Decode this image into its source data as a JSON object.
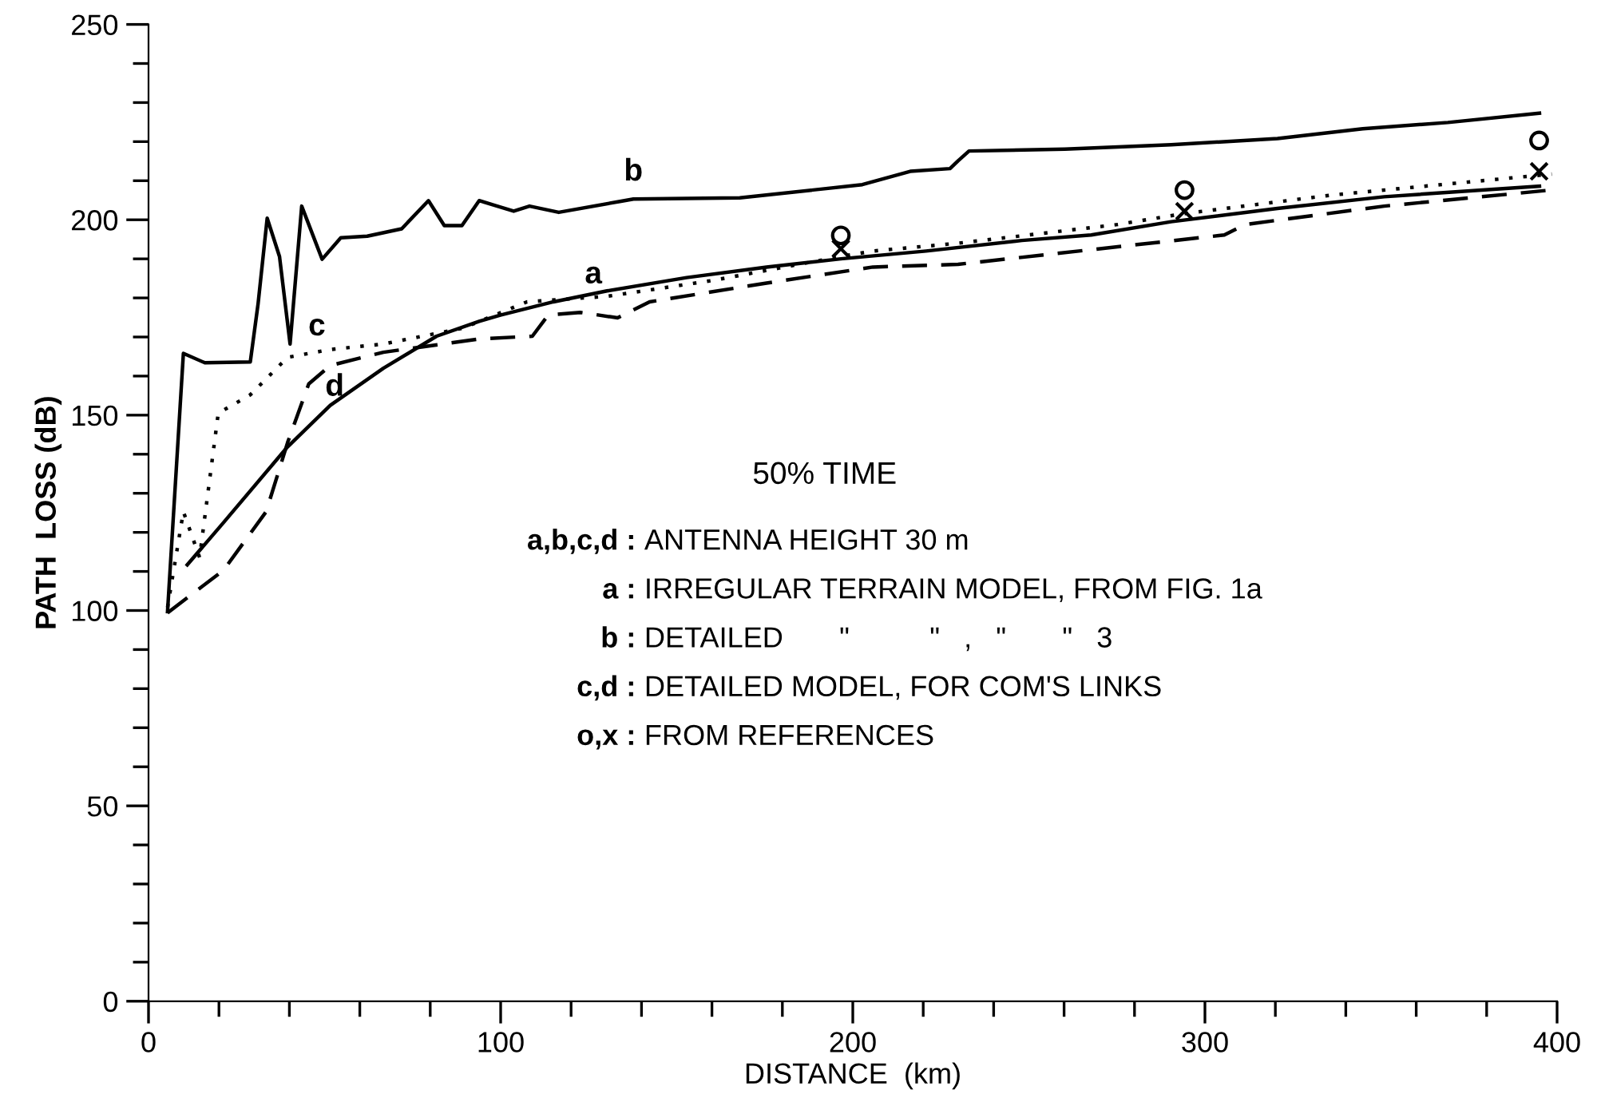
{
  "chart_data": {
    "type": "line",
    "xlabel": "DISTANCE  (km)",
    "ylabel": "PATH  LOSS (dB)",
    "xlim": [
      0,
      400
    ],
    "ylim": [
      0,
      250
    ],
    "xticks": [
      0,
      {
        "value": 20,
        "label": null
      },
      {
        "value": 40,
        "label": null
      },
      {
        "value": 60,
        "label": null
      },
      {
        "value": 80,
        "label": null
      },
      100,
      {
        "value": 120,
        "label": null
      },
      {
        "value": 140,
        "label": null
      },
      {
        "value": 160,
        "label": null
      },
      {
        "value": 180,
        "label": null
      },
      200,
      {
        "value": 220,
        "label": null
      },
      {
        "value": 240,
        "label": null
      },
      {
        "value": 260,
        "label": null
      },
      {
        "value": 280,
        "label": null
      },
      300,
      {
        "value": 320,
        "label": null
      },
      {
        "value": 340,
        "label": null
      },
      {
        "value": 360,
        "label": null
      },
      {
        "value": 380,
        "label": null
      },
      400
    ],
    "yticks": [
      0,
      {
        "value": 10,
        "label": null
      },
      {
        "value": 20,
        "label": null
      },
      {
        "value": 30,
        "label": null
      },
      {
        "value": 40,
        "label": null
      },
      50,
      {
        "value": 60,
        "label": null
      },
      {
        "value": 70,
        "label": null
      },
      {
        "value": 80,
        "label": null
      },
      {
        "value": 90,
        "label": null
      },
      100,
      {
        "value": 110,
        "label": null
      },
      {
        "value": 120,
        "label": null
      },
      {
        "value": 130,
        "label": null
      },
      {
        "value": 140,
        "label": null
      },
      150,
      {
        "value": 160,
        "label": null
      },
      {
        "value": 170,
        "label": null
      },
      {
        "value": 180,
        "label": null
      },
      {
        "value": 190,
        "label": null
      },
      200,
      {
        "value": 210,
        "label": null
      },
      {
        "value": 220,
        "label": null
      },
      {
        "value": 230,
        "label": null
      },
      {
        "value": 240,
        "label": null
      },
      250
    ],
    "grid": false,
    "legend": false,
    "series": [
      {
        "color": "#000000",
        "line_style": "solid",
        "x": [
          11,
          21.3,
          39.2,
          51.6,
          66.7,
          81.8,
          93.9,
          99.9,
          115,
          130.2,
          152.8,
          175.5,
          196.6,
          220.8,
          248,
          267.7,
          290.4,
          320.6,
          350.9,
          395
        ],
        "values": [
          111.7,
          122.5,
          141.6,
          152.5,
          162,
          170.2,
          174,
          175.6,
          179,
          181.8,
          185.2,
          187.9,
          190,
          192,
          194.7,
          196.1,
          199.5,
          202.9,
          205.9,
          208.6
        ]
      },
      {
        "color": "#000000",
        "line_style": "solid",
        "x": [
          5.4,
          9.9,
          16,
          28.9,
          31.1,
          33.7,
          37.2,
          40.2,
          43.5,
          49.3,
          54.6,
          62.1,
          71.9,
          79.5,
          84,
          89,
          93.9,
          103.7,
          108.2,
          116.5,
          137.7,
          167.9,
          202.7,
          216.3,
          227.6,
          229.9,
          233,
          260.2,
          290.4,
          320.6,
          344.8,
          369,
          395
        ],
        "values": [
          99.7,
          165.8,
          163.4,
          163.6,
          178.4,
          200.4,
          190.6,
          168.2,
          203.5,
          189.9,
          195.4,
          195.8,
          197.7,
          204.9,
          198.5,
          198.5,
          204.9,
          202.2,
          203.5,
          201.9,
          205.3,
          205.6,
          209,
          212.4,
          213.1,
          215.1,
          217.6,
          218.1,
          219.2,
          220.8,
          223.3,
          224.9,
          227.3
        ]
      },
      {
        "color": "#000000",
        "line_style": "dotted",
        "x": [
          5.4,
          9.9,
          14.5,
          19.8,
          28.9,
          39.5,
          51.6,
          66.7,
          89.4,
          107.5,
          130.2,
          160.4,
          196.6,
          205.7,
          229.9,
          275.3,
          293.4,
          335.7,
          398.5
        ],
        "values": [
          100.8,
          125.3,
          113.6,
          150.5,
          155.2,
          164.8,
          166.8,
          168.2,
          172.3,
          179,
          180.4,
          184.5,
          190.6,
          192,
          194,
          198.8,
          201.5,
          206.3,
          211.7
        ]
      },
      {
        "color": "#000000",
        "line_style": "dashed",
        "x": [
          5.4,
          21.3,
          33.4,
          39.5,
          45.5,
          51.6,
          66.7,
          93.9,
          109,
          113.5,
          122.6,
          133.2,
          142.3,
          175.5,
          205.7,
          229.9,
          305.5,
          311.5,
          350.9,
          398.2
        ],
        "values": [
          99.4,
          110.3,
          125.3,
          143,
          158,
          162.7,
          166.1,
          169.5,
          170.2,
          175.6,
          176.3,
          174.9,
          179,
          183.8,
          187.9,
          188.6,
          196.1,
          198.8,
          203.5,
          207.6
        ]
      },
      {
        "type": "scatter",
        "marker": "circle",
        "color": "#000000",
        "x": [
          196.6,
          294.2,
          394.9
        ],
        "values": [
          196,
          207.6,
          220.3
        ]
      },
      {
        "type": "scatter",
        "marker": "cross",
        "color": "#000000",
        "x": [
          196.6,
          294.2,
          394.9
        ],
        "values": [
          192.6,
          202.2,
          212.4
        ]
      }
    ],
    "annotations": [
      {
        "text": "a",
        "x": 115,
        "y": 179
      },
      {
        "text": "b",
        "x": 137.7,
        "y": 205.3
      },
      {
        "text": "c",
        "x": 51.6,
        "y": 166.8
      },
      {
        "text": "d",
        "x": 51.6,
        "y": 162.7
      },
      "50% TIME",
      "a,b,c,d : ANTENNA HEIGHT 30 m",
      "a : IRREGULAR TERRAIN MODEL, FROM FIG. 1a",
      "b : DETAILED       \"          \"   ,   \"       \"   3",
      "c,d : DETAILED MODEL, FOR COM'S LINKS",
      "o,x : FROM REFERENCES"
    ]
  }
}
